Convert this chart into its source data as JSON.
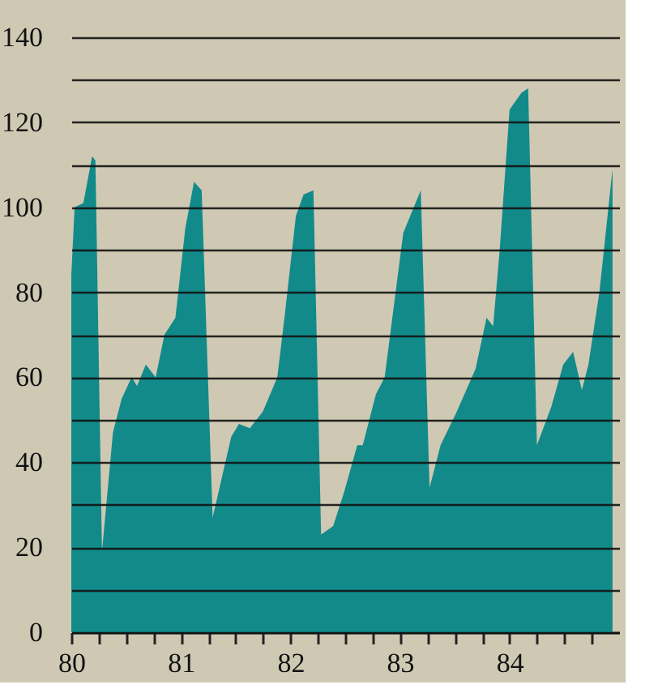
{
  "chart_data": {
    "type": "area",
    "color": "#138a8a",
    "x": [
      80.0,
      80.03,
      80.11,
      80.19,
      80.22,
      80.28,
      80.38,
      80.46,
      80.55,
      80.6,
      80.68,
      80.77,
      80.85,
      80.95,
      81.04,
      81.12,
      81.19,
      81.29,
      81.46,
      81.53,
      81.63,
      81.75,
      81.88,
      81.95,
      82.05,
      82.12,
      82.21,
      82.28,
      82.39,
      82.49,
      82.61,
      82.66,
      82.78,
      82.86,
      82.96,
      83.03,
      83.19,
      83.27,
      83.37,
      83.52,
      83.69,
      83.79,
      83.85,
      83.91,
      84.0,
      84.11,
      84.17,
      84.25,
      84.38,
      84.49,
      84.58,
      84.66,
      84.72,
      84.82,
      84.94
    ],
    "values": [
      84,
      100,
      101,
      112,
      111,
      19,
      47,
      55,
      60,
      58,
      63,
      60,
      70,
      74,
      95,
      106,
      104,
      27,
      46,
      49,
      48,
      52,
      60,
      75,
      98,
      103,
      104,
      23,
      25,
      33,
      44,
      44,
      56,
      60,
      80,
      94,
      104,
      34,
      44,
      52,
      62,
      74,
      72,
      90,
      123,
      127,
      128,
      44,
      53,
      63,
      66,
      57,
      63,
      80,
      109
    ],
    "xlim": [
      80,
      85
    ],
    "xticks": [
      80,
      {
        "value": 80.25,
        "label": null
      },
      {
        "value": 80.5,
        "label": null
      },
      {
        "value": 80.75,
        "label": null
      },
      81,
      {
        "value": 81.25,
        "label": null
      },
      {
        "value": 81.5,
        "label": null
      },
      {
        "value": 81.75,
        "label": null
      },
      82,
      {
        "value": 82.25,
        "label": null
      },
      {
        "value": 82.5,
        "label": null
      },
      {
        "value": 82.75,
        "label": null
      },
      83,
      {
        "value": 83.25,
        "label": null
      },
      {
        "value": 83.5,
        "label": null
      },
      {
        "value": 83.75,
        "label": null
      },
      84,
      {
        "value": 84.25,
        "label": null
      },
      {
        "value": 84.5,
        "label": null
      },
      {
        "value": 84.75,
        "label": null
      }
    ],
    "ylim": [
      0,
      140
    ],
    "yticks": [
      0,
      {
        "value": 10,
        "label": null
      },
      20,
      {
        "value": 30,
        "label": null
      },
      40,
      {
        "value": 50,
        "label": null
      },
      60,
      {
        "value": 70,
        "label": null
      },
      80,
      {
        "value": 90,
        "label": null
      },
      100,
      {
        "value": 110,
        "label": null
      },
      120,
      {
        "value": 130,
        "label": null
      },
      140
    ],
    "grid": "y"
  }
}
